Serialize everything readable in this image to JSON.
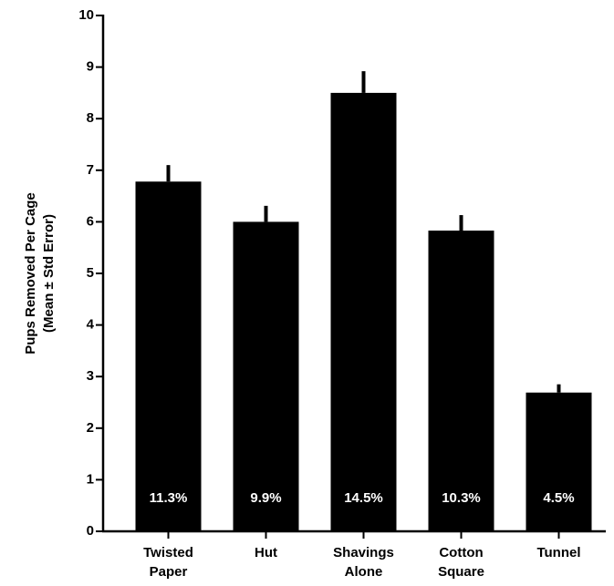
{
  "chart_data": {
    "type": "bar",
    "ylabel": [
      "Pups Removed Per Cage",
      "(Mean ± Std Error)"
    ],
    "categories": [
      [
        "Twisted",
        "Paper"
      ],
      [
        "Hut"
      ],
      [
        "Shavings",
        "Alone"
      ],
      [
        "Cotton",
        "Square"
      ],
      [
        "Tunnel"
      ]
    ],
    "values": [
      6.78,
      6.0,
      8.5,
      5.83,
      2.69
    ],
    "errors": [
      0.32,
      0.31,
      0.42,
      0.3,
      0.16
    ],
    "bar_labels": [
      "11.3%",
      "9.9%",
      "14.5%",
      "10.3%",
      "4.5%"
    ],
    "color": "#000000",
    "ylim": [
      0,
      10
    ],
    "yticks": [
      0,
      1,
      2,
      3,
      4,
      5,
      6,
      7,
      8,
      9,
      10
    ]
  }
}
